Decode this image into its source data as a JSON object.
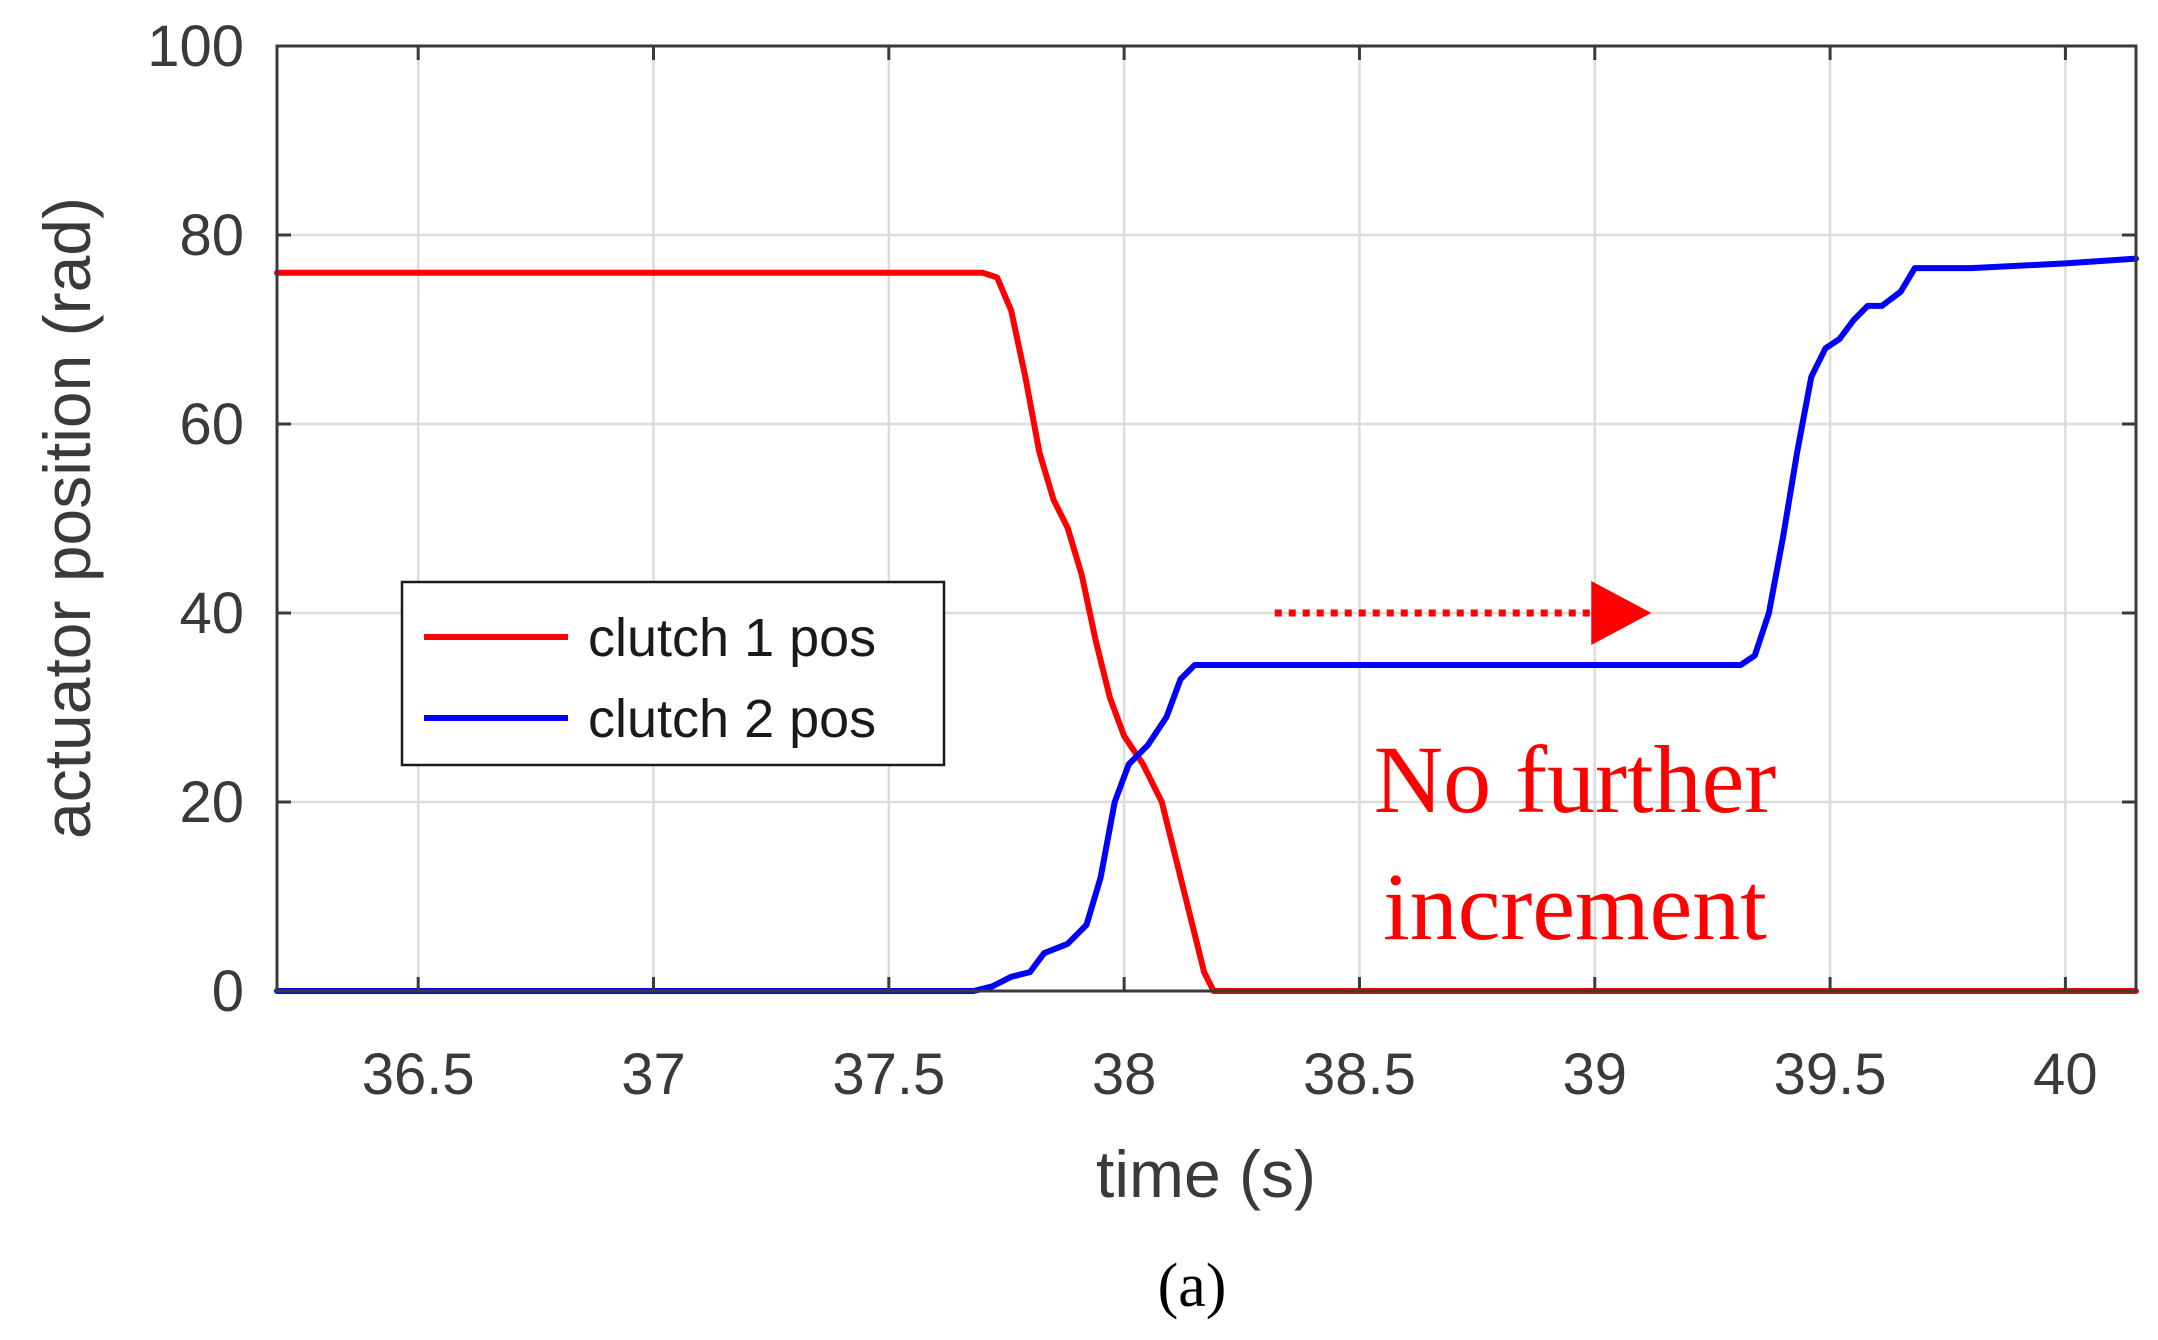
{
  "colors": {
    "red": "#ff0000",
    "blue": "#0000ff",
    "grid": "#dcdcdc",
    "axis": "#3a3a3a"
  },
  "chart_data": {
    "type": "line",
    "xlabel": "time (s)",
    "ylabel": "actuator position (rad)",
    "xlim": [
      36.2,
      40.15
    ],
    "ylim": [
      0,
      100
    ],
    "xticks": [
      36.5,
      37,
      37.5,
      38,
      38.5,
      39,
      39.5,
      40
    ],
    "xtick_labels": [
      "36.5",
      "37",
      "37.5",
      "38",
      "38.5",
      "39",
      "39.5",
      "40"
    ],
    "yticks": [
      0,
      20,
      40,
      60,
      80,
      100
    ],
    "ytick_labels": [
      "0",
      "20",
      "40",
      "60",
      "80",
      "100"
    ],
    "grid": true,
    "legend_position": "left",
    "series": [
      {
        "name": "clutch 1 pos",
        "color": "#ff0000",
        "x": [
          36.2,
          37.0,
          37.5,
          37.7,
          37.73,
          37.76,
          37.79,
          37.82,
          37.85,
          37.88,
          37.91,
          37.94,
          37.97,
          38.0,
          38.04,
          38.08,
          38.11,
          38.14,
          38.17,
          38.19,
          38.25,
          39.0,
          39.5,
          40.15
        ],
        "y": [
          76,
          76,
          76,
          76,
          75.5,
          72,
          65,
          57,
          52,
          49,
          44,
          37,
          31,
          27,
          24,
          20,
          14,
          8,
          2,
          0,
          0,
          0,
          0,
          0
        ]
      },
      {
        "name": "clutch 2 pos",
        "color": "#0000ff",
        "x": [
          36.2,
          37.0,
          37.5,
          37.68,
          37.72,
          37.76,
          37.8,
          37.83,
          37.88,
          37.92,
          37.95,
          37.98,
          38.01,
          38.05,
          38.09,
          38.12,
          38.15,
          38.18,
          38.25,
          38.7,
          39.0,
          39.31,
          39.34,
          39.37,
          39.4,
          39.43,
          39.46,
          39.49,
          39.52,
          39.55,
          39.58,
          39.61,
          39.65,
          39.68,
          39.72,
          39.8,
          40.0,
          40.15
        ],
        "y": [
          0,
          0,
          0,
          0,
          0.5,
          1.5,
          2,
          4,
          5,
          7,
          12,
          20,
          24,
          26,
          29,
          33,
          34.5,
          34.5,
          34.5,
          34.5,
          34.5,
          34.5,
          35.5,
          40,
          48,
          57,
          65,
          68,
          69,
          71,
          72.5,
          72.5,
          74,
          76.5,
          76.5,
          76.5,
          77,
          77.5
        ]
      }
    ]
  },
  "annotation": {
    "line1": "No further",
    "line2": "increment",
    "arrow_y": 40,
    "arrow_x_start": 38.32,
    "arrow_x_end": 39.12
  },
  "panel_label": "(a)"
}
